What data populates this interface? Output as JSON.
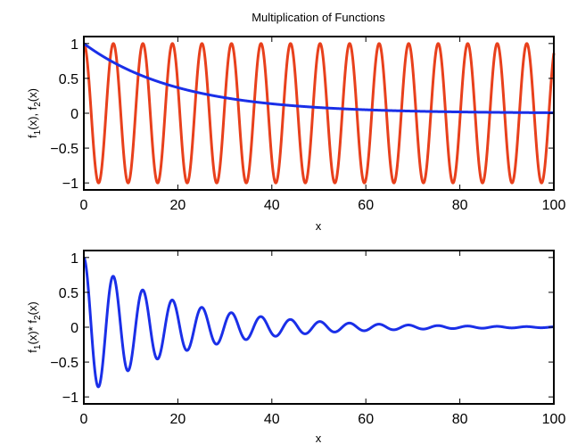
{
  "chart_data": [
    {
      "type": "line",
      "title": "Multiplication of Functions",
      "xlabel": "x",
      "ylabel": {
        "base1": "f",
        "sub1": "1",
        "mid": "(x), f",
        "sub2": "2",
        "end": "(x)"
      },
      "xlim": [
        0,
        100
      ],
      "ylim": [
        -1.1,
        1.1
      ],
      "xticks": [
        0,
        20,
        40,
        60,
        80,
        100
      ],
      "yticks": [
        -1,
        -0.5,
        0,
        0.5,
        1
      ],
      "yticklabels": [
        "−1",
        "−0.5",
        "0",
        "0.5",
        "1"
      ],
      "grid": false,
      "series": [
        {
          "color": "#e8401c",
          "formula": "cos(x)",
          "x": [
            0,
            3.14,
            6.28,
            9.42,
            12.57,
            15.71,
            18.85,
            21.99,
            25.13,
            28.27,
            31.42,
            34.56,
            37.7,
            40.84,
            43.98,
            47.12,
            50.27,
            53.41,
            56.55,
            59.69,
            62.83,
            65.97,
            69.12,
            72.26,
            75.4,
            78.54,
            81.68,
            84.82,
            87.96,
            91.11,
            94.25,
            97.39,
            100
          ],
          "y": [
            1,
            -1,
            1,
            -1,
            1,
            -1,
            1,
            -1,
            1,
            -1,
            1,
            -1,
            1,
            -1,
            1,
            -1,
            1,
            -1,
            1,
            -1,
            1,
            -1,
            1,
            -1,
            1,
            -1,
            1,
            -1,
            1,
            -1,
            1,
            -1,
            0.86
          ]
        },
        {
          "color": "#1a2fe8",
          "formula": "exp(-x/20)",
          "x": [
            0,
            10,
            20,
            30,
            40,
            50,
            60,
            70,
            80,
            90,
            100
          ],
          "y": [
            1,
            0.61,
            0.37,
            0.22,
            0.14,
            0.08,
            0.05,
            0.03,
            0.02,
            0.01,
            0.007
          ]
        }
      ]
    },
    {
      "type": "line",
      "title": "",
      "xlabel": "x",
      "ylabel": {
        "base1": "f",
        "sub1": "1",
        "mid": "(x)* f",
        "sub2": "2",
        "end": "(x)"
      },
      "xlim": [
        0,
        100
      ],
      "ylim": [
        -1.1,
        1.1
      ],
      "xticks": [
        0,
        20,
        40,
        60,
        80,
        100
      ],
      "yticks": [
        -1,
        -0.5,
        0,
        0.5,
        1
      ],
      "yticklabels": [
        "−1",
        "−0.5",
        "0",
        "0.5",
        "1"
      ],
      "grid": false,
      "series": [
        {
          "color": "#1a2fe8",
          "formula": "cos(x)*exp(-x/20)",
          "x": [
            0,
            3.14,
            6.28,
            9.42,
            12.57,
            15.71,
            18.85,
            21.99,
            25.13,
            28.27,
            31.42,
            34.56,
            37.7,
            40.84,
            43.98,
            47.12,
            50.27
          ],
          "y": [
            1,
            -0.85,
            0.73,
            -0.62,
            0.53,
            -0.46,
            0.39,
            -0.33,
            0.28,
            -0.24,
            0.21,
            -0.18,
            0.15,
            -0.13,
            0.11,
            -0.09,
            0.08
          ]
        }
      ]
    }
  ]
}
